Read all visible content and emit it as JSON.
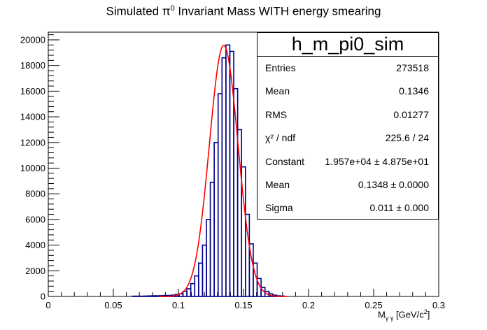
{
  "title_main": "Simulated π",
  "title_sup": "0",
  "title_rest": " Invariant Mass WITH energy smearing",
  "stats": {
    "name": "h_m_pi0_sim",
    "rows": [
      {
        "key": "Entries",
        "value": "273518"
      },
      {
        "key": "Mean",
        "value": "0.1346"
      },
      {
        "key": "RMS",
        "value": "0.01277"
      },
      {
        "key": "χ² / ndf",
        "value": "225.6 / 24"
      },
      {
        "key": "Constant",
        "value": "1.957e+04 ± 4.875e+01"
      },
      {
        "key": "Mean",
        "value": "0.1348 ± 0.0000"
      },
      {
        "key": "Sigma",
        "value": "0.011 ± 0.000"
      }
    ]
  },
  "xlabel": {
    "main": "M",
    "sub": "γ γ",
    "rest": " [GeV/c",
    "sup": "2",
    "end": "]"
  },
  "chart_data": {
    "type": "bar",
    "xlabel": "Mγγ [GeV/c²]",
    "ylabel": "",
    "xlim": [
      0,
      0.3
    ],
    "ylim": [
      0,
      20600
    ],
    "xticks": [
      0,
      0.05,
      0.1,
      0.15,
      0.2,
      0.25,
      0.3
    ],
    "xtick_labels": [
      "0",
      "0.05",
      "0.1",
      "0.15",
      "0.2",
      "0.25",
      "0.3"
    ],
    "yticks": [
      0,
      2000,
      4000,
      6000,
      8000,
      10000,
      12000,
      14000,
      16000,
      18000,
      20000
    ],
    "ytick_labels": [
      "0",
      "2000",
      "4000",
      "6000",
      "8000",
      "10000",
      "12000",
      "14000",
      "16000",
      "18000",
      "20000"
    ],
    "histogram_color": "#00008b",
    "fit_color": "#ff0000",
    "bin_width": 0.003,
    "bins": [
      {
        "x": 0.066,
        "y": 20
      },
      {
        "x": 0.069,
        "y": 20
      },
      {
        "x": 0.072,
        "y": 20
      },
      {
        "x": 0.075,
        "y": 30
      },
      {
        "x": 0.078,
        "y": 40
      },
      {
        "x": 0.081,
        "y": 50
      },
      {
        "x": 0.084,
        "y": 50
      },
      {
        "x": 0.087,
        "y": 60
      },
      {
        "x": 0.09,
        "y": 70
      },
      {
        "x": 0.093,
        "y": 80
      },
      {
        "x": 0.096,
        "y": 100
      },
      {
        "x": 0.099,
        "y": 150
      },
      {
        "x": 0.102,
        "y": 200
      },
      {
        "x": 0.105,
        "y": 400
      },
      {
        "x": 0.108,
        "y": 600
      },
      {
        "x": 0.111,
        "y": 1000
      },
      {
        "x": 0.114,
        "y": 1600
      },
      {
        "x": 0.117,
        "y": 2600
      },
      {
        "x": 0.12,
        "y": 4000
      },
      {
        "x": 0.123,
        "y": 6000
      },
      {
        "x": 0.126,
        "y": 8900
      },
      {
        "x": 0.129,
        "y": 12000
      },
      {
        "x": 0.132,
        "y": 15800
      },
      {
        "x": 0.135,
        "y": 18600
      },
      {
        "x": 0.138,
        "y": 19600
      },
      {
        "x": 0.141,
        "y": 19100
      },
      {
        "x": 0.144,
        "y": 16200
      },
      {
        "x": 0.147,
        "y": 13000
      },
      {
        "x": 0.15,
        "y": 10100
      },
      {
        "x": 0.153,
        "y": 6400
      },
      {
        "x": 0.156,
        "y": 4100
      },
      {
        "x": 0.159,
        "y": 2600
      },
      {
        "x": 0.162,
        "y": 1400
      },
      {
        "x": 0.165,
        "y": 700
      },
      {
        "x": 0.168,
        "y": 400
      },
      {
        "x": 0.171,
        "y": 200
      },
      {
        "x": 0.174,
        "y": 100
      },
      {
        "x": 0.177,
        "y": 50
      },
      {
        "x": 0.18,
        "y": 30
      }
    ],
    "fit": {
      "function": "gaus",
      "constant": 19570,
      "mean": 0.1348,
      "sigma": 0.011
    }
  }
}
